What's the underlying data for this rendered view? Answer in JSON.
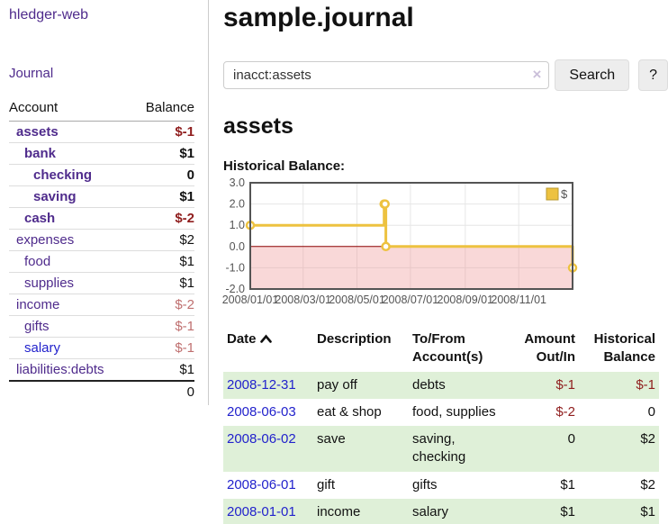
{
  "colors": {
    "link_purple": "#4f2b8c",
    "link_blue": "#2222cc",
    "negative_strong": "#8f1d1d",
    "negative_muted": "#bf6f6f",
    "row_green": "#dff0d8",
    "series_gold": "#edc240"
  },
  "sidebar": {
    "app_title": "hledger-web",
    "nav": {
      "journal": "Journal"
    },
    "accounts_table": {
      "headers": {
        "account": "Account",
        "balance": "Balance"
      },
      "rows": [
        {
          "name": "assets",
          "balance": "$-1",
          "level": 0,
          "bold": true,
          "neg": "strong"
        },
        {
          "name": "bank",
          "balance": "$1",
          "level": 1,
          "bold": true
        },
        {
          "name": "checking",
          "balance": "0",
          "level": 2,
          "bold": true
        },
        {
          "name": "saving",
          "balance": "$1",
          "level": 2,
          "bold": true
        },
        {
          "name": "cash",
          "balance": "$-2",
          "level": 1,
          "bold": true,
          "neg": "strong"
        },
        {
          "name": "expenses",
          "balance": "$2",
          "level": 0
        },
        {
          "name": "food",
          "balance": "$1",
          "level": 1
        },
        {
          "name": "supplies",
          "balance": "$1",
          "level": 1
        },
        {
          "name": "income",
          "balance": "$-2",
          "level": 0,
          "neg": "muted"
        },
        {
          "name": "gifts",
          "balance": "$-1",
          "level": 1,
          "neg": "muted"
        },
        {
          "name": "salary",
          "balance": "$-1",
          "level": 1,
          "neg": "muted",
          "link_color": "blue"
        },
        {
          "name": "liabilities:debts",
          "balance": "$1",
          "level": 0
        }
      ],
      "total": "0"
    }
  },
  "header": {
    "title": "sample.journal"
  },
  "search": {
    "value": "inacct:assets",
    "clear_icon": "×",
    "button": "Search",
    "help_button": "?"
  },
  "account_page": {
    "heading": "assets",
    "chart_label": "Historical Balance:"
  },
  "chart_data": {
    "type": "line",
    "step": true,
    "title": "Historical Balance:",
    "ylabel": "",
    "xlabel": "",
    "ylim": [
      -2,
      3
    ],
    "grid": true,
    "legend_position": "top-right",
    "y_ticks": [
      {
        "label": "3.0",
        "v": 3
      },
      {
        "label": "2.0",
        "v": 2
      },
      {
        "label": "1.0",
        "v": 1
      },
      {
        "label": "0.0",
        "v": 0
      },
      {
        "label": "-1.0",
        "v": -1
      },
      {
        "label": "-2.0",
        "v": -2
      }
    ],
    "x_ticks": [
      {
        "label": "2008/01/01",
        "f": 0.0
      },
      {
        "label": "2008/03/01",
        "f": 0.164
      },
      {
        "label": "2008/05/01",
        "f": 0.331
      },
      {
        "label": "2008/07/01",
        "f": 0.497
      },
      {
        "label": "2008/09/01",
        "f": 0.667
      },
      {
        "label": "2008/11/01",
        "f": 0.833
      }
    ],
    "series": [
      {
        "name": "$",
        "color": "#edc240",
        "points": [
          {
            "date": "2008-01-01",
            "f": 0.0,
            "value": 1
          },
          {
            "date": "2008-06-01",
            "f": 0.4153,
            "value": 2
          },
          {
            "date": "2008-06-02",
            "f": 0.4181,
            "value": 2
          },
          {
            "date": "2008-06-03",
            "f": 0.4208,
            "value": 0
          },
          {
            "date": "2008-12-31",
            "f": 1.0,
            "value": -1
          }
        ]
      }
    ],
    "negative_region_color": "#ef8f8f",
    "zero_line_color": "#8b0000",
    "border_color": "#545454",
    "grid_color": "#e6e6e6",
    "tick_label_color": "#545454"
  },
  "register_table": {
    "headers": {
      "date": "Date",
      "description": "Description",
      "accounts": "To/From Account(s)",
      "amount": "Amount Out/In",
      "balance": "Historical Balance"
    },
    "rows": [
      {
        "date": "2008-12-31",
        "description": "pay off",
        "accounts": "debts",
        "amount": "$-1",
        "balance": "$-1",
        "amount_neg": true,
        "balance_neg": true,
        "green": true
      },
      {
        "date": "2008-06-03",
        "description": "eat & shop",
        "accounts": "food, supplies",
        "amount": "$-2",
        "balance": "0",
        "amount_neg": true,
        "balance_neg": false,
        "green": false
      },
      {
        "date": "2008-06-02",
        "description": "save",
        "accounts": "saving, checking",
        "amount": "0",
        "balance": "$2",
        "amount_neg": false,
        "balance_neg": false,
        "green": true
      },
      {
        "date": "2008-06-01",
        "description": "gift",
        "accounts": "gifts",
        "amount": "$1",
        "balance": "$2",
        "amount_neg": false,
        "balance_neg": false,
        "green": false
      },
      {
        "date": "2008-01-01",
        "description": "income",
        "accounts": "salary",
        "amount": "$1",
        "balance": "$1",
        "amount_neg": false,
        "balance_neg": false,
        "green": true
      }
    ]
  }
}
